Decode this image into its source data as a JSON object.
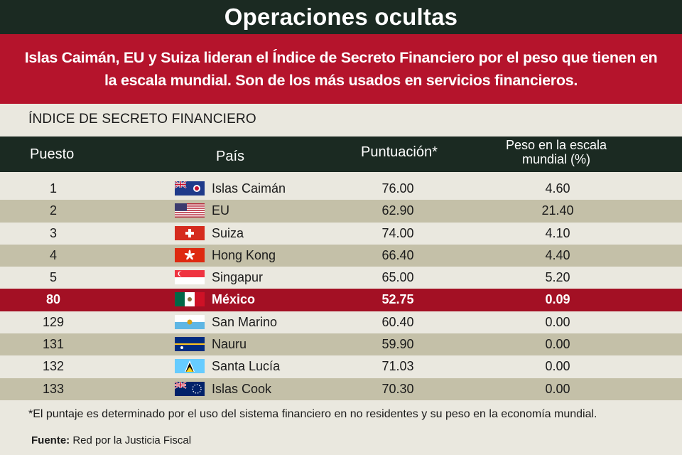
{
  "title": "Operaciones ocultas",
  "subtitle": "Islas Caimán, EU y Suiza lideran el Índice de Secreto Financiero por el peso que tienen en la escala mundial. Son de los más usados en servicios financieros.",
  "section_label": "ÍNDICE DE SECRETO FINANCIERO",
  "headers": {
    "rank": "Puesto",
    "country": "País",
    "score": "Puntuación*",
    "weight": "Peso en la escala mundial (%)"
  },
  "footnote": "*El puntaje es determinado por el uso del sistema financiero en no residentes y su peso en la economía mundial.",
  "source_label": "Fuente:",
  "source_text": "Red por la Justicia Fiscal",
  "colors": {
    "dark_green": "#1b2a22",
    "red": "#b5142c",
    "highlight_red": "#a31024",
    "stripe": "#c4c0a8",
    "background": "#eae8df"
  },
  "chart_data": {
    "type": "table",
    "title": "Operaciones ocultas",
    "columns": [
      "Puesto",
      "País",
      "Puntuación*",
      "Peso en la escala mundial (%)"
    ],
    "rows": [
      {
        "rank": "1",
        "country": "Islas Caimán",
        "flag": "cayman-islands-flag",
        "score": "76.00",
        "weight": "4.60",
        "highlight": false
      },
      {
        "rank": "2",
        "country": "EU",
        "flag": "usa-flag",
        "score": "62.90",
        "weight": "21.40",
        "highlight": false
      },
      {
        "rank": "3",
        "country": "Suiza",
        "flag": "switzerland-flag",
        "score": "74.00",
        "weight": "4.10",
        "highlight": false
      },
      {
        "rank": "4",
        "country": "Hong Kong",
        "flag": "hong-kong-flag",
        "score": "66.40",
        "weight": "4.40",
        "highlight": false
      },
      {
        "rank": "5",
        "country": "Singapur",
        "flag": "singapore-flag",
        "score": "65.00",
        "weight": "5.20",
        "highlight": false
      },
      {
        "rank": "80",
        "country": "México",
        "flag": "mexico-flag",
        "score": "52.75",
        "weight": "0.09",
        "highlight": true
      },
      {
        "rank": "129",
        "country": "San Marino",
        "flag": "san-marino-flag",
        "score": "60.40",
        "weight": "0.00",
        "highlight": false
      },
      {
        "rank": "131",
        "country": "Nauru",
        "flag": "nauru-flag",
        "score": "59.90",
        "weight": "0.00",
        "highlight": false
      },
      {
        "rank": "132",
        "country": "Santa Lucía",
        "flag": "saint-lucia-flag",
        "score": "71.03",
        "weight": "0.00",
        "highlight": false
      },
      {
        "rank": "133",
        "country": "Islas Cook",
        "flag": "cook-islands-flag",
        "score": "70.30",
        "weight": "0.00",
        "highlight": false
      }
    ]
  }
}
